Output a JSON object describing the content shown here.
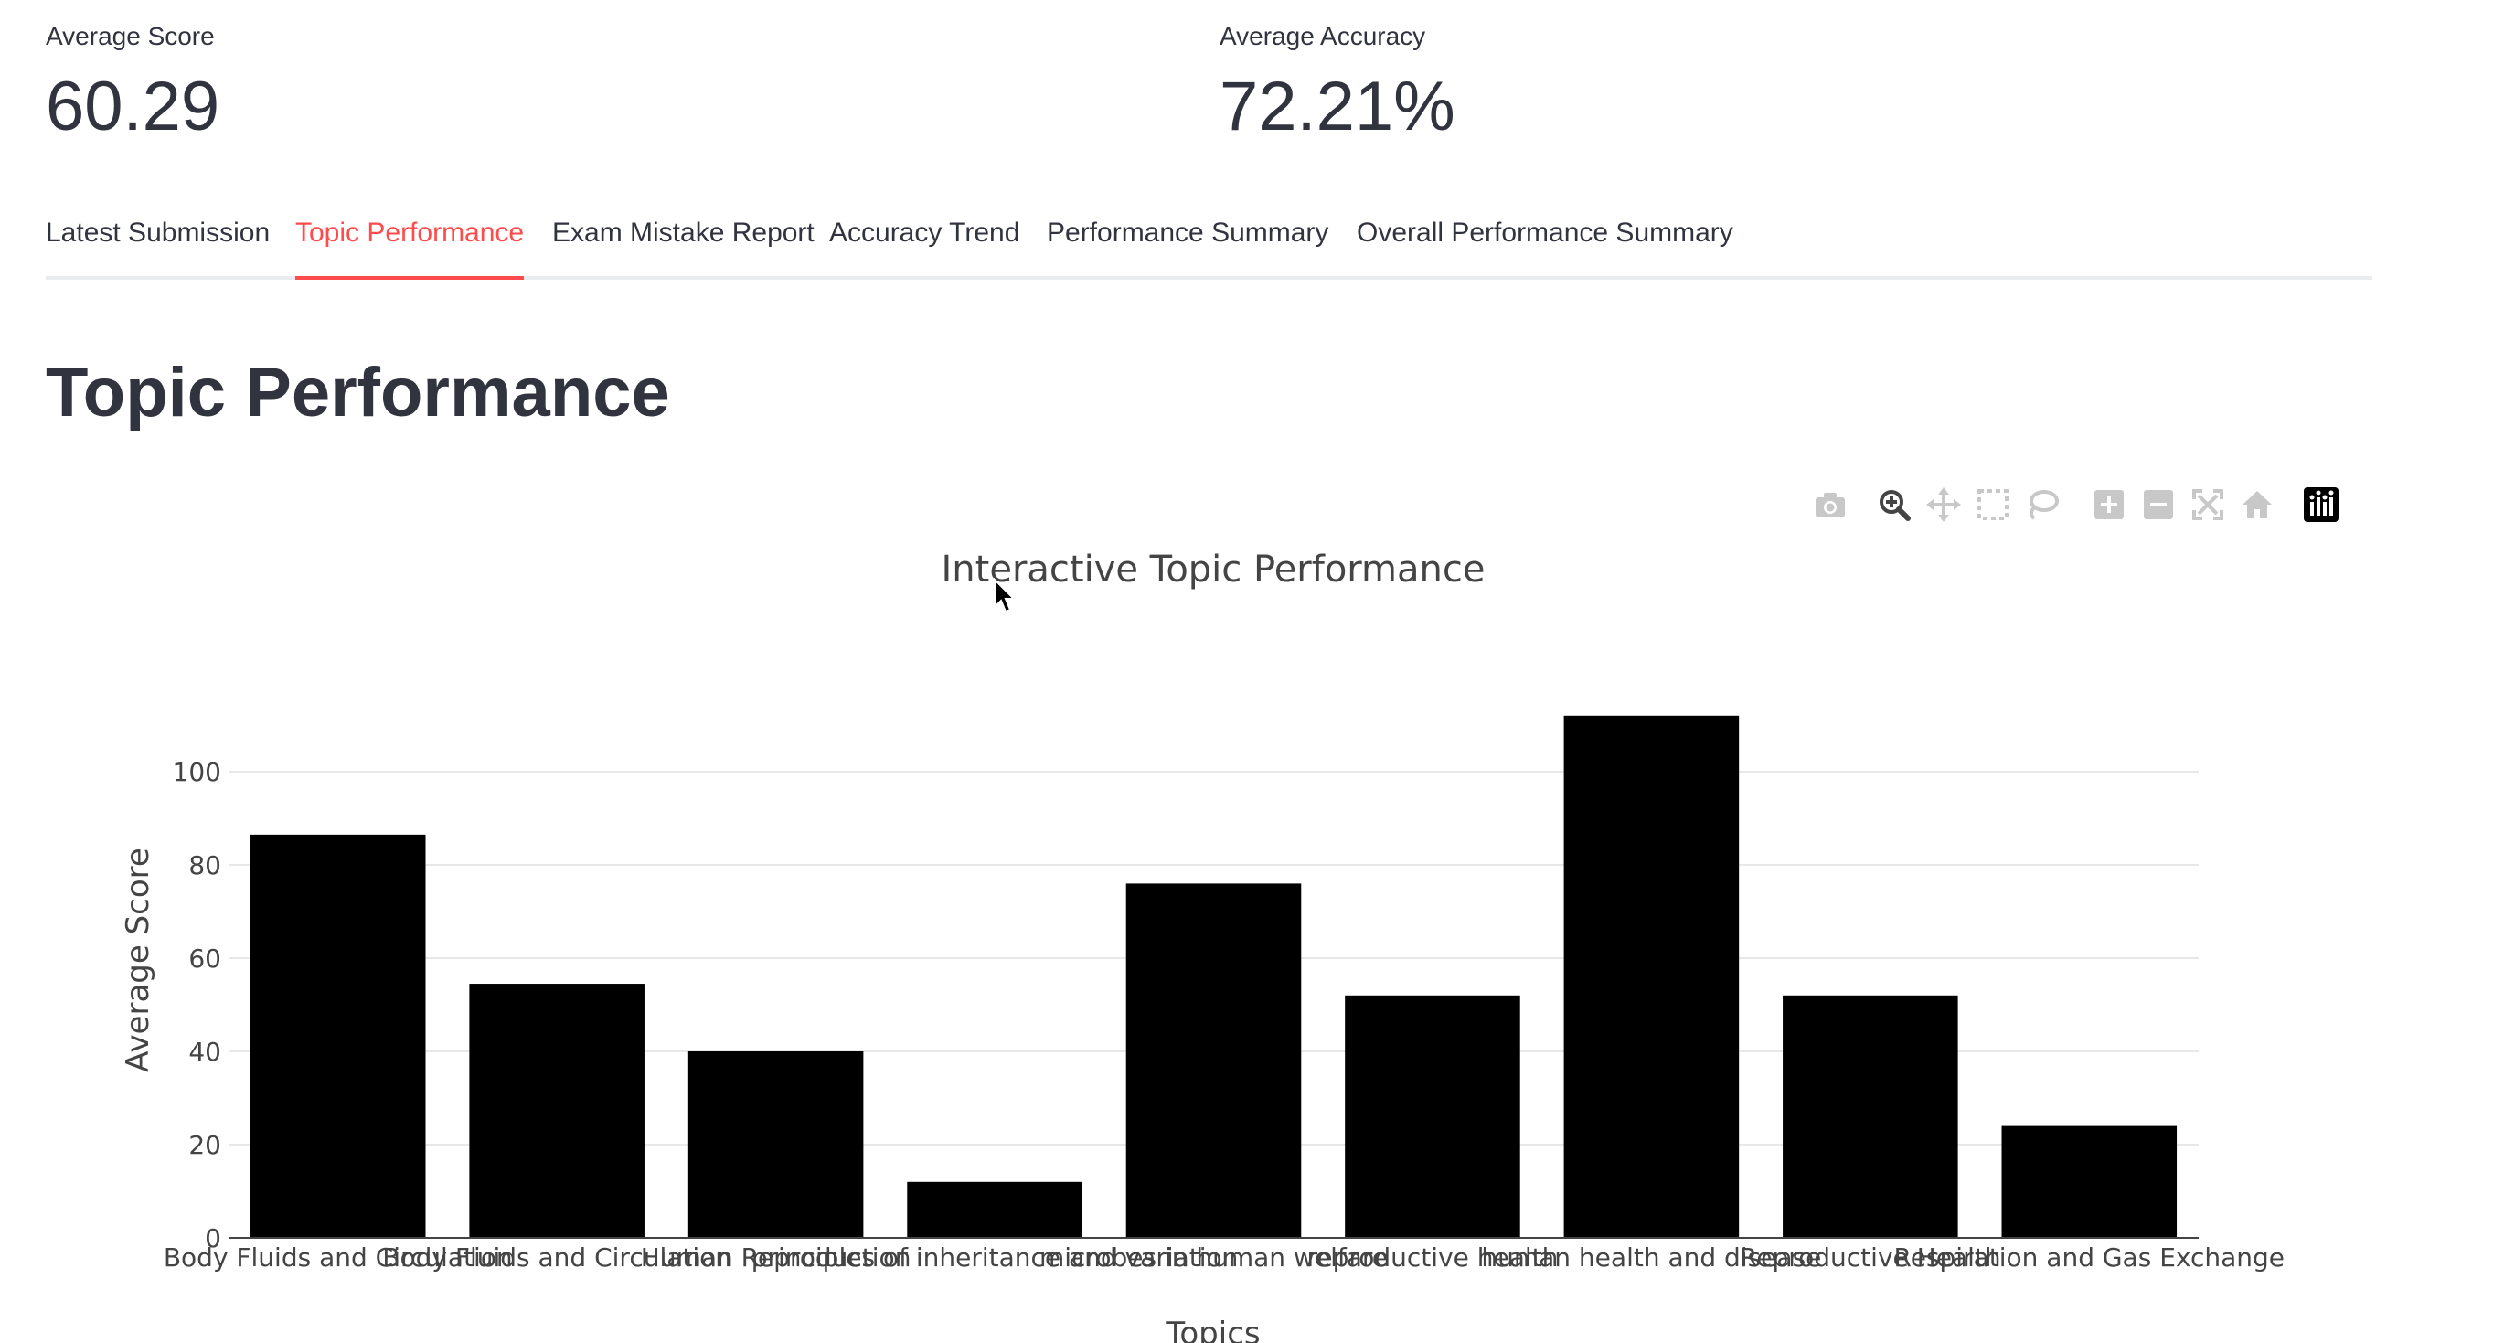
{
  "metrics": {
    "score": {
      "label": "Average Score",
      "value": "60.29"
    },
    "accuracy": {
      "label": "Average Accuracy",
      "value": "72.21%"
    }
  },
  "tabs": [
    {
      "label": "Latest Submission",
      "active": false
    },
    {
      "label": "Topic Performance",
      "active": true
    },
    {
      "label": "Exam Mistake Report",
      "active": false
    },
    {
      "label": "Accuracy Trend",
      "active": false
    },
    {
      "label": "Performance Summary",
      "active": false
    },
    {
      "label": "Overall Performance Summary",
      "active": false
    }
  ],
  "page": {
    "title": "Topic Performance"
  },
  "modebar": {
    "icons": [
      "camera-icon",
      "zoom-icon",
      "pan-icon",
      "box-select-icon",
      "lasso-select-icon",
      "zoom-in-icon",
      "zoom-out-icon",
      "autoscale-icon",
      "reset-axes-icon",
      "plotly-logo-icon"
    ],
    "active_icon": "zoom-icon"
  },
  "colors": {
    "accent": "#ff4b4b",
    "bar": "#000000",
    "text": "#31333f",
    "grid": "#e8e8e8"
  },
  "chart_data": {
    "type": "bar",
    "title": "Interactive Topic Performance",
    "xlabel": "Topics",
    "ylabel": "Average Score",
    "categories": [
      "Body Fluids and Circulation",
      "Body Fluids and Circulation ",
      "Human Reproduction",
      "principles of inheritance and variation",
      "microbes in human welfare",
      "reproductive health",
      "human health and disease",
      "Reproductive Health",
      "Respiration and Gas Exchange"
    ],
    "values": [
      86.5,
      54.5,
      40,
      12,
      76,
      52,
      112,
      52,
      24
    ],
    "yticks": [
      0,
      20,
      40,
      60,
      80,
      100
    ],
    "ylim": [
      0,
      118
    ],
    "grid": true,
    "legend": "none"
  }
}
